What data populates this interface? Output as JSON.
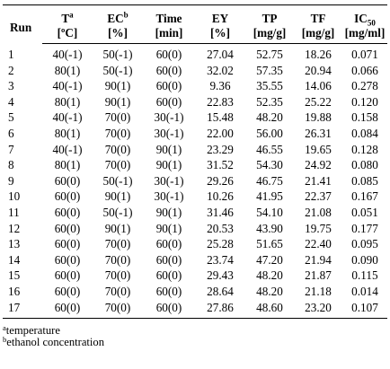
{
  "headers": {
    "run": "Run",
    "temp_top": "T",
    "temp_sup": "a",
    "temp_unit": "[ºC]",
    "ec_top": "EC",
    "ec_sup": "b",
    "ec_unit": "[%]",
    "time_top": "Time",
    "time_unit": "[min]",
    "ey_top": "EY",
    "ey_unit": "[%]",
    "tp_top": "TP",
    "tp_unit": "[mg/g]",
    "tf_top": "TF",
    "tf_unit": "[mg/g]",
    "ic_top": "IC",
    "ic_sub": "50",
    "ic_unit": "[mg/ml]"
  },
  "rows": [
    {
      "run": "1",
      "t": "40(-1)",
      "ec": "50(-1)",
      "time": "60(0)",
      "ey": "27.04",
      "tp": "52.75",
      "tf": "18.26",
      "ic": "0.071"
    },
    {
      "run": "2",
      "t": "80(1)",
      "ec": "50(-1)",
      "time": "60(0)",
      "ey": "32.02",
      "tp": "57.35",
      "tf": "20.94",
      "ic": "0.066"
    },
    {
      "run": "3",
      "t": "40(-1)",
      "ec": "90(1)",
      "time": "60(0)",
      "ey": "9.36",
      "tp": "35.55",
      "tf": "14.06",
      "ic": "0.278"
    },
    {
      "run": "4",
      "t": "80(1)",
      "ec": "90(1)",
      "time": "60(0)",
      "ey": "22.83",
      "tp": "52.35",
      "tf": "25.22",
      "ic": "0.120"
    },
    {
      "run": "5",
      "t": "40(-1)",
      "ec": "70(0)",
      "time": "30(-1)",
      "ey": "15.48",
      "tp": "48.20",
      "tf": "19.88",
      "ic": "0.158"
    },
    {
      "run": "6",
      "t": "80(1)",
      "ec": "70(0)",
      "time": "30(-1)",
      "ey": "22.00",
      "tp": "56.00",
      "tf": "26.31",
      "ic": "0.084"
    },
    {
      "run": "7",
      "t": "40(-1)",
      "ec": "70(0)",
      "time": "90(1)",
      "ey": "23.29",
      "tp": "46.55",
      "tf": "19.65",
      "ic": "0.128"
    },
    {
      "run": "8",
      "t": "80(1)",
      "ec": "70(0)",
      "time": "90(1)",
      "ey": "31.52",
      "tp": "54.30",
      "tf": "24.92",
      "ic": "0.080"
    },
    {
      "run": "9",
      "t": "60(0)",
      "ec": "50(-1)",
      "time": "30(-1)",
      "ey": "29.26",
      "tp": "46.75",
      "tf": "21.41",
      "ic": "0.085"
    },
    {
      "run": "10",
      "t": "60(0)",
      "ec": "90(1)",
      "time": "30(-1)",
      "ey": "10.26",
      "tp": "41.95",
      "tf": "22.37",
      "ic": "0.167"
    },
    {
      "run": "11",
      "t": "60(0)",
      "ec": "50(-1)",
      "time": "90(1)",
      "ey": "31.46",
      "tp": "54.10",
      "tf": "21.08",
      "ic": "0.051"
    },
    {
      "run": "12",
      "t": "60(0)",
      "ec": "90(1)",
      "time": "90(1)",
      "ey": "20.53",
      "tp": "43.90",
      "tf": "19.75",
      "ic": "0.177"
    },
    {
      "run": "13",
      "t": "60(0)",
      "ec": "70(0)",
      "time": "60(0)",
      "ey": "25.28",
      "tp": "51.65",
      "tf": "22.40",
      "ic": "0.095"
    },
    {
      "run": "14",
      "t": "60(0)",
      "ec": "70(0)",
      "time": "60(0)",
      "ey": "23.74",
      "tp": "47.20",
      "tf": "21.94",
      "ic": "0.090"
    },
    {
      "run": "15",
      "t": "60(0)",
      "ec": "70(0)",
      "time": "60(0)",
      "ey": "29.43",
      "tp": "48.20",
      "tf": "21.87",
      "ic": "0.115"
    },
    {
      "run": "16",
      "t": "60(0)",
      "ec": "70(0)",
      "time": "60(0)",
      "ey": "28.64",
      "tp": "48.20",
      "tf": "21.18",
      "ic": "0.014"
    },
    {
      "run": "17",
      "t": "60(0)",
      "ec": "70(0)",
      "time": "60(0)",
      "ey": "27.86",
      "tp": "48.60",
      "tf": "23.20",
      "ic": "0.107"
    }
  ],
  "footnotes": [
    {
      "mark": "a",
      "text": "temperature"
    },
    {
      "mark": "b",
      "text": "ethanol concentration"
    }
  ]
}
